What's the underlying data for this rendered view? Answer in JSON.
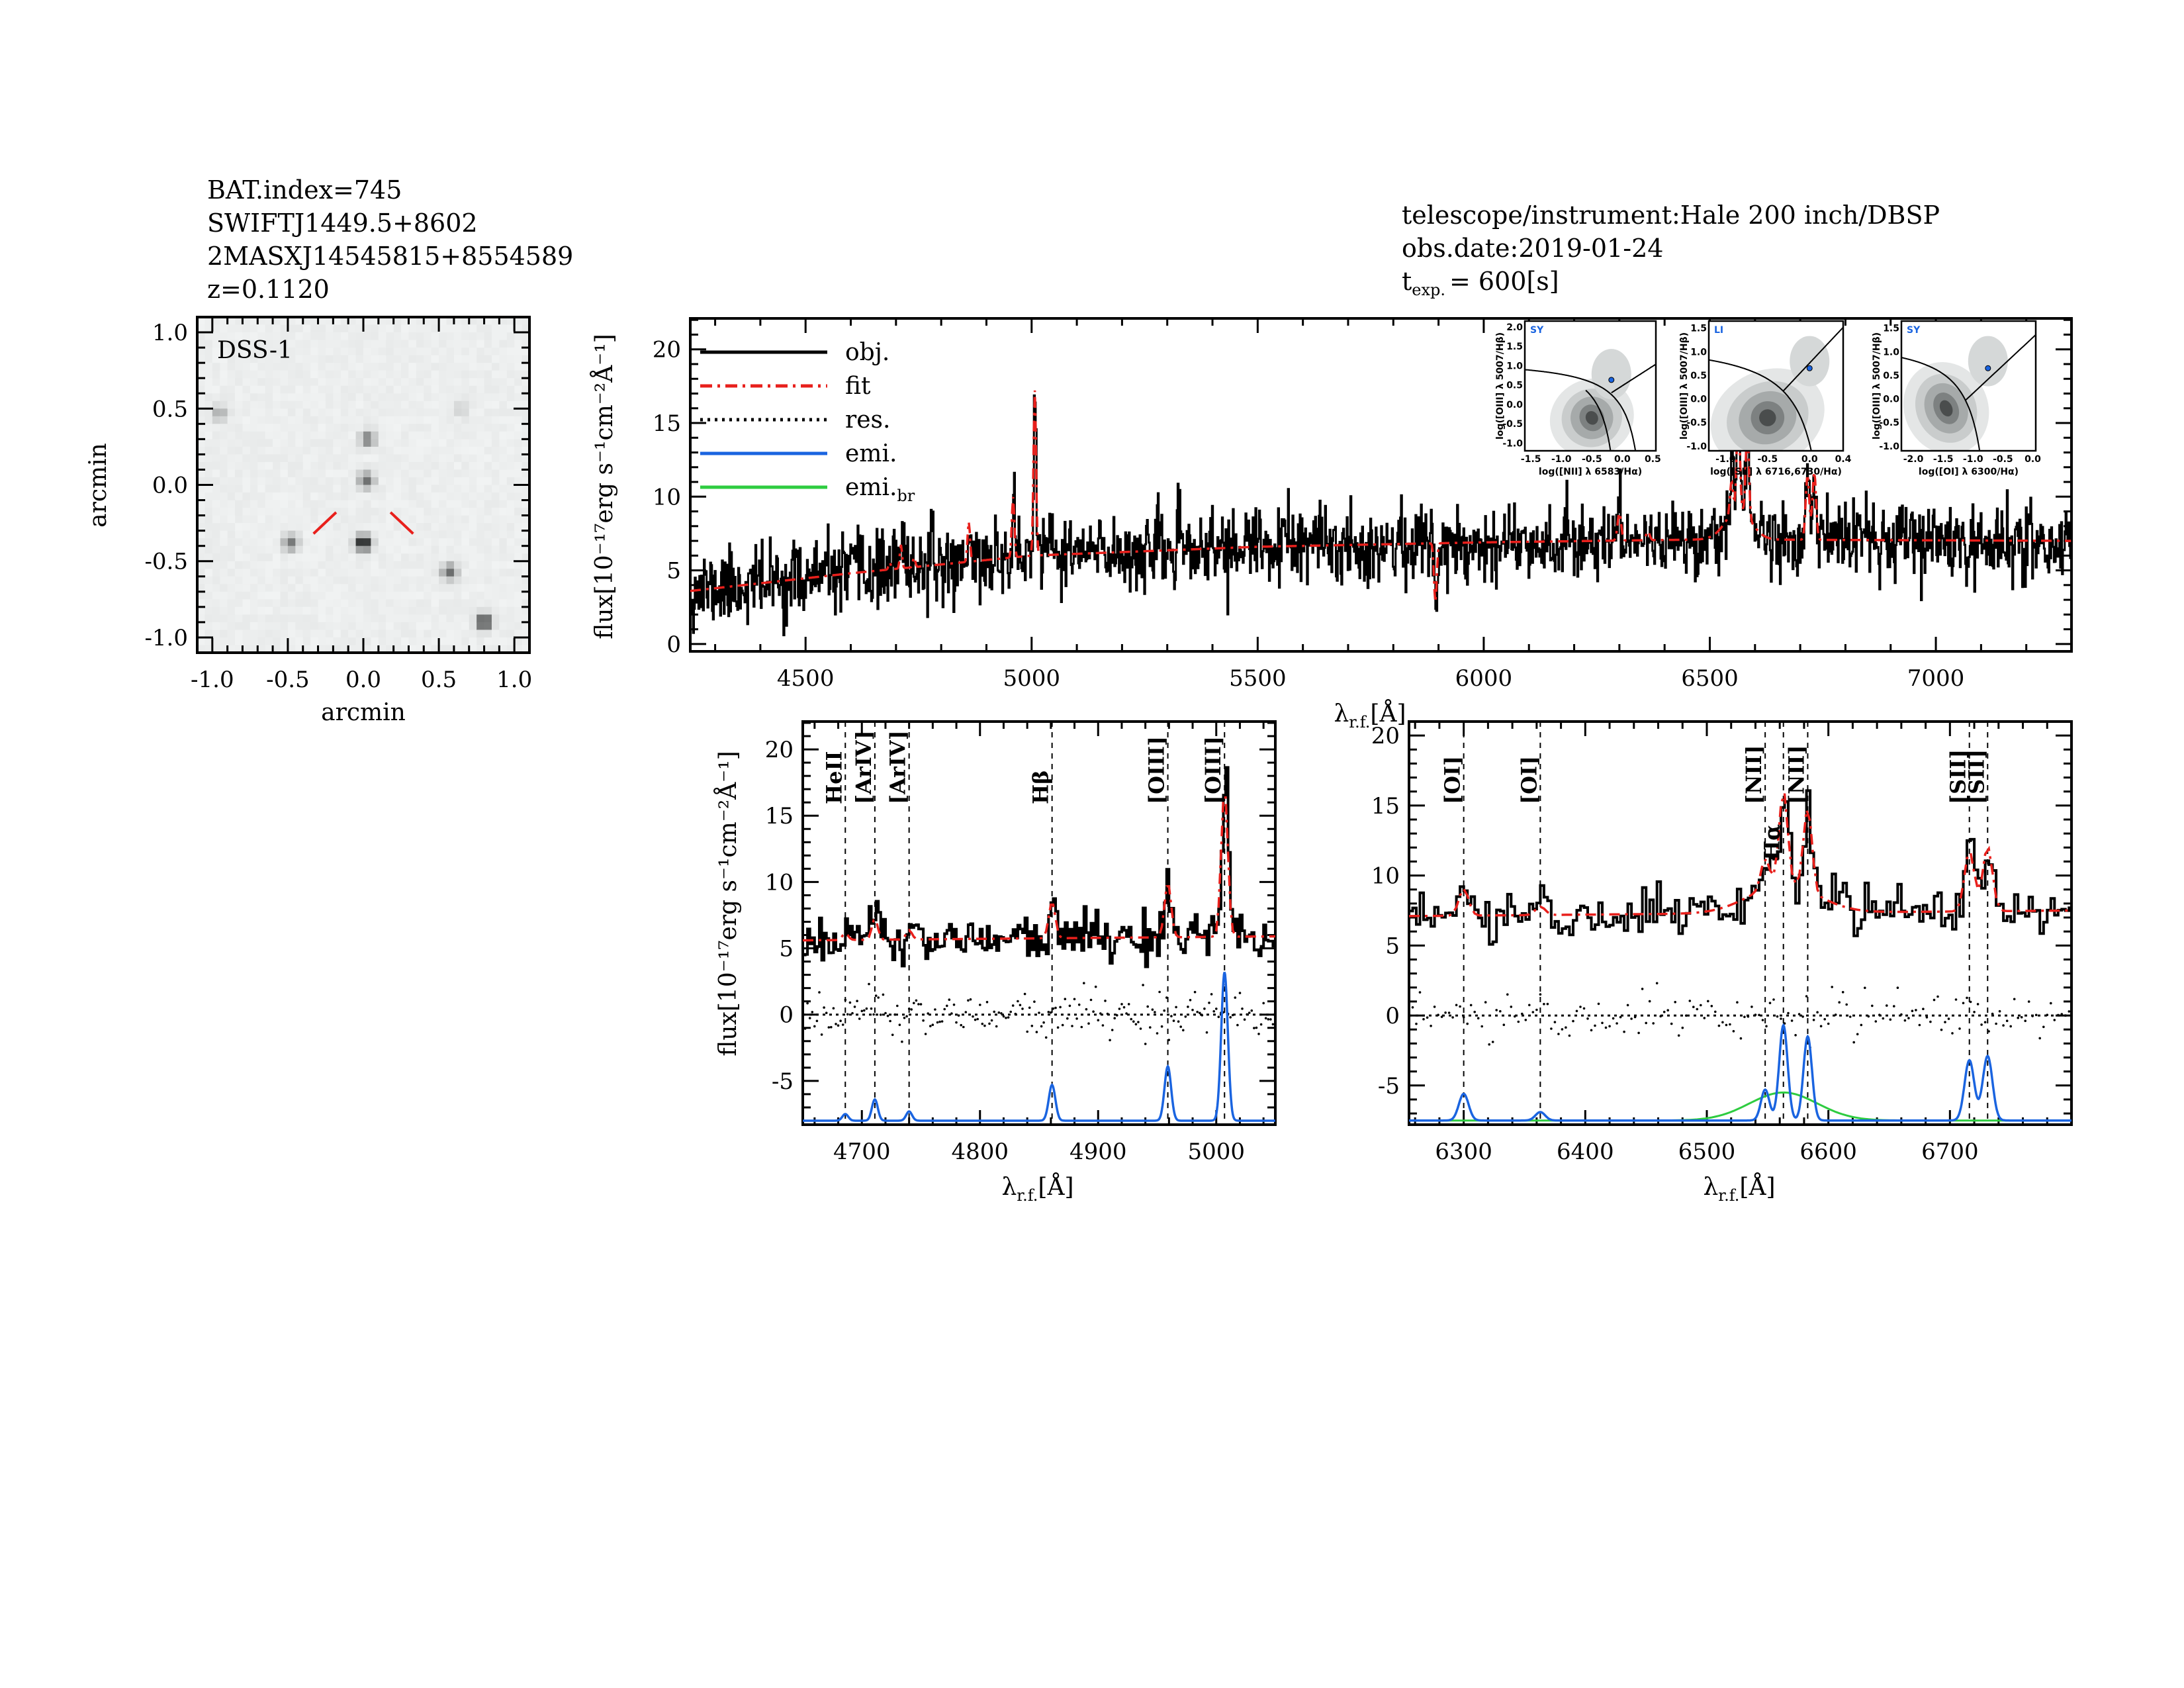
{
  "header_left": {
    "bat_index": "BAT.index=745",
    "swift_name": "SWIFTJ1449.5+8602",
    "counterpart": "2MASXJ14545815+8554589",
    "redshift": "z=0.1120"
  },
  "header_right": {
    "telescope": "telescope/instrument:Hale 200 inch/DBSP",
    "obs_date": "obs.date:2019-01-24",
    "texp_prefix": "t",
    "texp_sub": "exp.",
    "texp_value": "= 600[s]"
  },
  "colors": {
    "obj": "#000000",
    "fit": "#e8201c",
    "res": "#000000",
    "emi": "#1a64e0",
    "emi_br": "#2ecc40",
    "marker_red": "#e8201c"
  },
  "chart_data": [
    {
      "id": "dss",
      "type": "heatmap",
      "title": "DSS-1",
      "xlabel": "arcmin",
      "ylabel": "arcmin",
      "xlim": [
        -1.1,
        1.1
      ],
      "ylim": [
        -1.1,
        1.1
      ],
      "xticks": [
        "-1.0",
        "-0.5",
        "0.0",
        "0.5",
        "1.0"
      ],
      "yticks": [
        "1.0",
        "0.5",
        "0.0",
        "-0.5",
        "-1.0"
      ],
      "sources": [
        {
          "x": 0.0,
          "y": -0.38,
          "brightness": 1.0
        },
        {
          "x": 0.02,
          "y": 0.03,
          "brightness": 0.55
        },
        {
          "x": 0.03,
          "y": 0.3,
          "brightness": 0.5
        },
        {
          "x": -0.48,
          "y": -0.38,
          "brightness": 0.5
        },
        {
          "x": 0.57,
          "y": -0.57,
          "brightness": 0.55
        },
        {
          "x": 0.8,
          "y": -0.9,
          "brightness": 0.85
        },
        {
          "x": -0.95,
          "y": 0.47,
          "brightness": 0.3
        },
        {
          "x": 0.65,
          "y": 0.5,
          "brightness": 0.15
        }
      ],
      "target_marker": {
        "x": 0.0,
        "y": -0.1
      }
    },
    {
      "id": "full",
      "type": "line",
      "xlabel_main": "λ",
      "xlabel_sub": "r.f.",
      "xlabel_tail": "[Å]",
      "ylabel": "flux[10⁻¹⁷erg s⁻¹cm⁻²Å⁻¹]",
      "xlim": [
        4245,
        7300
      ],
      "ylim": [
        -0.5,
        22.1
      ],
      "xticks": [
        4500,
        5000,
        5500,
        6000,
        6500,
        7000
      ],
      "yticks": [
        0,
        5,
        10,
        15,
        20
      ],
      "continuum": [
        [
          4245,
          3.6
        ],
        [
          4600,
          4.8
        ],
        [
          5000,
          6.0
        ],
        [
          5500,
          6.6
        ],
        [
          6000,
          6.9
        ],
        [
          6500,
          7.1
        ],
        [
          7300,
          7.0
        ]
      ],
      "absorption": [
        {
          "wave": 5893,
          "depth": 4.0,
          "sigma": 3
        }
      ],
      "noise": 1.3,
      "legend": [
        {
          "label": "obj.",
          "style": "solid",
          "color": "#000000"
        },
        {
          "label": "fit",
          "style": "dashdot",
          "color": "#e8201c"
        },
        {
          "label": "res.",
          "style": "dotted",
          "color": "#000000"
        },
        {
          "label": "emi.",
          "style": "solid",
          "color": "#1a64e0"
        },
        {
          "label": "emi.",
          "sub": "br",
          "style": "solid",
          "color": "#2ecc40"
        }
      ]
    },
    {
      "id": "hb",
      "type": "line",
      "xlabel_main": "λ",
      "xlabel_sub": "r.f.",
      "xlabel_tail": "[Å]",
      "ylabel": "flux[10⁻¹⁷erg s⁻¹cm⁻²Å⁻¹]",
      "xlim": [
        4650,
        5050
      ],
      "ylim": [
        -8.3,
        22.1
      ],
      "xticks": [
        4700,
        4800,
        4900,
        5000
      ],
      "yticks": [
        -5,
        0,
        5,
        10,
        15,
        20
      ],
      "continuum": [
        [
          4650,
          5.6
        ],
        [
          5050,
          5.9
        ]
      ],
      "emission_offset": -8,
      "noise": 0.9,
      "lines": [
        {
          "name": "HeII",
          "wave": 4686,
          "amp": 0.5,
          "sigma": 2.5,
          "label_color": "#e8201c"
        },
        {
          "name": "[ArIV]",
          "wave": 4711,
          "amp": 1.6,
          "sigma": 2.5,
          "label_color": "#e8201c"
        },
        {
          "name": "[ArIV]",
          "wave": 4740,
          "amp": 0.7,
          "sigma": 2.5,
          "label_color": "#e8201c"
        },
        {
          "name": "Hβ",
          "wave": 4861,
          "amp": 2.7,
          "sigma": 2.8,
          "label_color": "#000000"
        },
        {
          "name": "[OIII]",
          "wave": 4959,
          "amp": 4.1,
          "sigma": 2.8,
          "label_color": "#000000"
        },
        {
          "name": "[OIII]",
          "wave": 5007,
          "amp": 11.2,
          "sigma": 2.8,
          "label_color": "#000000"
        }
      ]
    },
    {
      "id": "ha",
      "type": "line",
      "xlabel_main": "λ",
      "xlabel_sub": "r.f.",
      "xlabel_tail": "[Å]",
      "xlim": [
        6255,
        6800
      ],
      "ylim": [
        -7.8,
        21
      ],
      "xticks": [
        6300,
        6400,
        6500,
        6600,
        6700
      ],
      "yticks": [
        -5,
        0,
        5,
        10,
        15,
        20
      ],
      "continuum": [
        [
          6255,
          7.1
        ],
        [
          6800,
          7.5
        ]
      ],
      "emission_offset": -7.5,
      "noise": 0.8,
      "lines": [
        {
          "name": "[OI]",
          "wave": 6300,
          "amp": 1.9,
          "sigma": 4,
          "label_color": "#000000"
        },
        {
          "name": "[OI]",
          "wave": 6363,
          "amp": 0.6,
          "sigma": 4,
          "label_color": "#e8201c"
        },
        {
          "name": "[NII]",
          "wave": 6548,
          "amp": 2.2,
          "sigma": 3.5,
          "label_color": "#000000"
        },
        {
          "name": "Hα",
          "wave": 6563,
          "amp": 6.8,
          "sigma": 3.5,
          "label_color": "#000000"
        },
        {
          "name": "[NII]",
          "wave": 6583,
          "amp": 6.0,
          "sigma": 3.5,
          "label_color": "#000000"
        },
        {
          "name": "[SII]",
          "wave": 6716,
          "amp": 4.3,
          "sigma": 4,
          "label_color": "#000000"
        },
        {
          "name": "[SII]",
          "wave": 6731,
          "amp": 4.6,
          "sigma": 4,
          "label_color": "#000000"
        }
      ],
      "broad_lines": [
        {
          "name": "Hα broad",
          "wave": 6563,
          "amp": 2.0,
          "sigma": 28
        }
      ]
    }
  ],
  "bpt": [
    {
      "class": "SY",
      "xlabel": "log([NII] λ 6583/Hα)",
      "ylabel": "log([OIII] λ 5007/Hβ)",
      "xlim": [
        -1.6,
        0.55
      ],
      "ylim": [
        -1.2,
        2.15
      ],
      "xticks": [
        "-1.5",
        "-1.0",
        "-0.5",
        "0.0",
        "0.5"
      ],
      "yticks": [
        "2.0",
        "1.5",
        "1.0",
        "0.5",
        "0.0",
        "-0.5",
        "-1.0"
      ],
      "point": [
        -0.18,
        0.63
      ]
    },
    {
      "class": "LI",
      "xlabel": "log([SII] λ 6716,6730/Hα)",
      "ylabel": "log([OIII] λ 5007/Hβ)",
      "xlim": [
        -1.2,
        0.4
      ],
      "ylim": [
        -1.1,
        1.65
      ],
      "xticks": [
        "-1.0",
        "-0.5",
        "0.0",
        "0.4"
      ],
      "yticks": [
        "1.5",
        "1.0",
        "0.5",
        "0.0",
        "-0.5",
        "-1.0"
      ],
      "point": [
        0.0,
        0.65
      ]
    },
    {
      "class": "SY",
      "xlabel": "log([OI] λ 6300/Hα)",
      "ylabel": "log([OIII] λ 5007/Hβ)",
      "xlim": [
        -2.2,
        0.05
      ],
      "ylim": [
        -1.1,
        1.65
      ],
      "xticks": [
        "-2.0",
        "-1.5",
        "-1.0",
        "-0.5",
        "0.0"
      ],
      "yticks": [
        "1.5",
        "1.0",
        "0.5",
        "0.0",
        "-0.5",
        "-1.0"
      ],
      "point": [
        -0.75,
        0.65
      ]
    }
  ]
}
